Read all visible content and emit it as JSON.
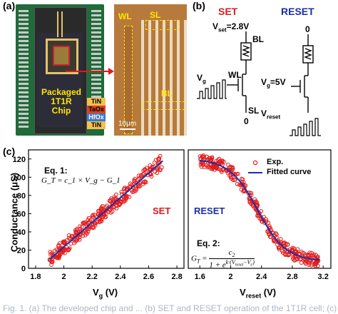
{
  "panels": {
    "a": "(a)",
    "b": "(b)",
    "c": "(c)"
  },
  "chip": {
    "title_line1": "Packaged",
    "title_line2": "1T1R",
    "title_line3": "Chip",
    "stack": [
      "TiN",
      "TaOx",
      "HfOx",
      "TiN"
    ],
    "stack_colors": [
      "#f2c14e",
      "#d6451c",
      "#3a7bd5",
      "#f2c14e"
    ],
    "micro_labels": {
      "wl": "WL",
      "sl": "SL",
      "bl": "BL"
    },
    "scale_bar": "10μm"
  },
  "circuit": {
    "set_title": "SET",
    "reset_title": "RESET",
    "vset": "V",
    "vset_sub": "set",
    "vset_val": "=2.8V",
    "bl": "BL",
    "wl": "WL",
    "sl": "SL",
    "vg": "V",
    "vg_sub": "g",
    "zero_set": "0",
    "zero_reset_top": "0",
    "vg_reset": "V",
    "vg_reset_sub": "g",
    "vg_reset_val": "=5V",
    "vreset": "V",
    "vreset_sub": "reset"
  },
  "plot_left": {
    "ylabel": "Conductance (μS)",
    "xlabel_main": "V",
    "xlabel_sub": "g",
    "xlabel_unit": " (V)",
    "eq_title": "Eq. 1:",
    "eq_body": "G_T = c_1 × V_g − G_1",
    "mode": "SET",
    "yticks": [
      "0",
      "20",
      "40",
      "60",
      "80",
      "100",
      "120"
    ],
    "xticks": [
      "1.8",
      "2",
      "2.2",
      "2.4",
      "2.6",
      "2.8"
    ]
  },
  "plot_right": {
    "xlabel_main": "V",
    "xlabel_sub": "reset",
    "xlabel_unit": " (V)",
    "mode": "RESET",
    "legend_exp": "Exp.",
    "legend_fit": "Fitted curve",
    "eq_title": "Eq. 2:",
    "eq_num": "c",
    "eq_num_sub": "2",
    "eq_lhs": "G",
    "eq_lhs_sub": "T",
    "eq_den": "1 + e",
    "eq_den_exp": "k·(V",
    "eq_den_exp_sub": "reset",
    "eq_den_exp_tail": "−V",
    "eq_den_exp_sub2": "c",
    "eq_den_exp_close": ")",
    "xticks": [
      "1.6",
      "2",
      "2.4",
      "2.8",
      "3.2"
    ]
  },
  "chart_data": [
    {
      "type": "scatter",
      "title": "",
      "xlabel": "Vg (V)",
      "ylabel": "Conductance (μS)",
      "xlim": [
        1.75,
        2.85
      ],
      "ylim": [
        0,
        130
      ],
      "series": [
        {
          "name": "",
          "points": "Vg 1.9 → 2.7 V, G ≈ 10 → 120 μS, linear with spread ±8 μS"
        },
        {
          "name": "",
          "x": [
            1.9,
            2.7
          ],
          "y": [
            10,
            118
          ]
        }
      ]
    },
    {
      "type": "scatter",
      "title": "",
      "xlabel": "Vreset (V)",
      "ylabel": "",
      "xlim": [
        1.45,
        3.3
      ],
      "ylim": [
        0,
        130
      ],
      "series": [
        {
          "name": "Exp.",
          "points": "Vreset 1.6 → 3.15 V, sigmoidal decay from ~118 to ~10 μS"
        },
        {
          "name": "Fitted curve",
          "G_high": 120,
          "G_low": 8,
          "Vc": 2.35,
          "k": 5.5
        }
      ]
    }
  ],
  "caption": "Fig. 1. (a) The developed chip and ... (b) SET and RESET operation of the 1T1R cell; (c) ..."
}
